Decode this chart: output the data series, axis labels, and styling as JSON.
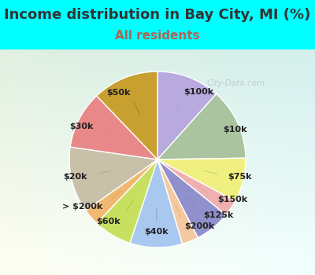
{
  "title": "Income distribution in Bay City, MI (%)",
  "subtitle": "All residents",
  "watermark": "City-Data.com",
  "labels": [
    "$100k",
    "$10k",
    "$75k",
    "$150k",
    "$125k",
    "$200k",
    "$40k",
    "$60k",
    "> $200k",
    "$20k",
    "$30k",
    "$50k"
  ],
  "values": [
    11.5,
    13.0,
    8.0,
    3.0,
    6.5,
    3.0,
    9.5,
    7.0,
    3.0,
    12.0,
    10.5,
    12.0
  ],
  "colors": [
    "#b8aade",
    "#aac4a0",
    "#f0f080",
    "#f0b0b0",
    "#9090cc",
    "#f5c8a0",
    "#a8c8f0",
    "#c8e060",
    "#f0b870",
    "#c8c0a8",
    "#e88888",
    "#c8a030"
  ],
  "background_color": "#00ffff",
  "title_color": "#333333",
  "subtitle_color": "#aa6655",
  "title_fontsize": 13,
  "subtitle_fontsize": 11,
  "label_fontsize": 8,
  "startangle": 90,
  "line_colors": [
    "#aaaacc",
    "#aaccaa",
    "#cccc88",
    "#ddaaaa",
    "#8888bb",
    "#ddbb88",
    "#88aabb",
    "#aacc44",
    "#ddaa66",
    "#bbaa88",
    "#dd8888",
    "#aa8822"
  ]
}
